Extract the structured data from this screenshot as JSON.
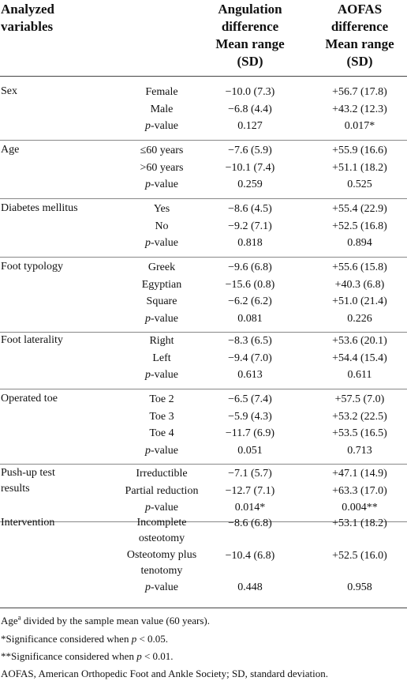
{
  "header": {
    "col1": [
      "Analyzed",
      "variables"
    ],
    "col2": [
      "Angulation",
      "difference",
      "Mean range",
      "(SD)"
    ],
    "col3": [
      "AOFAS",
      "difference",
      "Mean range",
      "(SD)"
    ]
  },
  "groups": [
    {
      "name": [
        "Sex"
      ],
      "rows": [
        {
          "level": [
            "Female"
          ],
          "angulation": "−10.0 (7.3)",
          "aofas": "+56.7 (17.8)"
        },
        {
          "level": [
            "Male"
          ],
          "angulation": "−6.8 (4.4)",
          "aofas": "+43.2 (12.3)"
        },
        {
          "level": [
            "p-value"
          ],
          "angulation": "0.127",
          "aofas": "0.017*"
        }
      ]
    },
    {
      "name": [
        "Age"
      ],
      "rows": [
        {
          "level": [
            "≤60 years"
          ],
          "angulation": "−7.6 (5.9)",
          "aofas": "+55.9 (16.6)"
        },
        {
          "level": [
            ">60 years"
          ],
          "angulation": "−10.1 (7.4)",
          "aofas": "+51.1 (18.2)"
        },
        {
          "level": [
            "p-value"
          ],
          "angulation": "0.259",
          "aofas": "0.525"
        }
      ]
    },
    {
      "name": [
        "Diabetes mellitus"
      ],
      "rows": [
        {
          "level": [
            "Yes"
          ],
          "angulation": "−8.6 (4.5)",
          "aofas": "+55.4 (22.9)"
        },
        {
          "level": [
            "No"
          ],
          "angulation": "−9.2 (7.1)",
          "aofas": "+52.5 (16.8)"
        },
        {
          "level": [
            "p-value"
          ],
          "angulation": "0.818",
          "aofas": "0.894"
        }
      ]
    },
    {
      "name": [
        "Foot typology"
      ],
      "rows": [
        {
          "level": [
            "Greek"
          ],
          "angulation": "−9.6 (6.8)",
          "aofas": "+55.6 (15.8)"
        },
        {
          "level": [
            "Egyptian"
          ],
          "angulation": "−15.6 (0.8)",
          "aofas": "+40.3 (6.8)"
        },
        {
          "level": [
            "Square"
          ],
          "angulation": "−6.2 (6.2)",
          "aofas": "+51.0 (21.4)"
        },
        {
          "level": [
            "p-value"
          ],
          "angulation": "0.081",
          "aofas": "0.226"
        }
      ]
    },
    {
      "name": [
        "Foot laterality"
      ],
      "rows": [
        {
          "level": [
            "Right"
          ],
          "angulation": "−8.3 (6.5)",
          "aofas": "+53.6 (20.1)"
        },
        {
          "level": [
            "Left"
          ],
          "angulation": "−9.4 (7.0)",
          "aofas": "+54.4 (15.4)"
        },
        {
          "level": [
            "p-value"
          ],
          "angulation": "0.613",
          "aofas": "0.611"
        }
      ]
    },
    {
      "name": [
        "Operated toe"
      ],
      "rows": [
        {
          "level": [
            "Toe 2"
          ],
          "angulation": "−6.5 (7.4)",
          "aofas": "+57.5 (7.0)"
        },
        {
          "level": [
            "Toe 3"
          ],
          "angulation": "−5.9 (4.3)",
          "aofas": "+53.2 (22.5)"
        },
        {
          "level": [
            "Toe 4"
          ],
          "angulation": "−11.7 (6.9)",
          "aofas": "+53.5 (16.5)"
        },
        {
          "level": [
            "p-value"
          ],
          "angulation": "0.051",
          "aofas": "0.713"
        }
      ]
    },
    {
      "name": [
        "Push-up test",
        "results"
      ],
      "rows": [
        {
          "level": [
            "Irreductible"
          ],
          "angulation": "−7.1 (5.7)",
          "aofas": "+47.1 (14.9)"
        },
        {
          "level": [
            "Partial reduction"
          ],
          "angulation": "−12.7 (7.1)",
          "aofas": "+63.3 (17.0)"
        },
        {
          "level": [
            "p-value"
          ],
          "angulation": "0.014*",
          "aofas": "0.004**"
        }
      ]
    },
    {
      "name": [
        "Intervention"
      ],
      "rows": [
        {
          "level": [
            "Incomplete",
            "osteotomy"
          ],
          "angulation": "−8.6 (6.8)",
          "aofas": "+53.1 (18.2)"
        },
        {
          "level": [
            "Osteotomy plus",
            "tenotomy"
          ],
          "angulation": "−10.4 (6.8)",
          "aofas": "+52.5 (16.0)"
        },
        {
          "level": [
            "p-value"
          ],
          "angulation": "0.448",
          "aofas": "0.958"
        }
      ]
    }
  ],
  "footnotes": {
    "age_a_prefix": "Age",
    "age_a_sup": "a",
    "age_a_rest": " divided by the sample mean value (60 years).",
    "sig1_prefix": "*Significance considered when ",
    "sig1_p": "p",
    "sig1_rest": " < 0.05.",
    "sig2_prefix": "**Significance considered when ",
    "sig2_p": "p",
    "sig2_rest": " < 0.01.",
    "abbrev": "AOFAS, American Orthopedic Foot and Ankle Society; SD, standard deviation."
  }
}
